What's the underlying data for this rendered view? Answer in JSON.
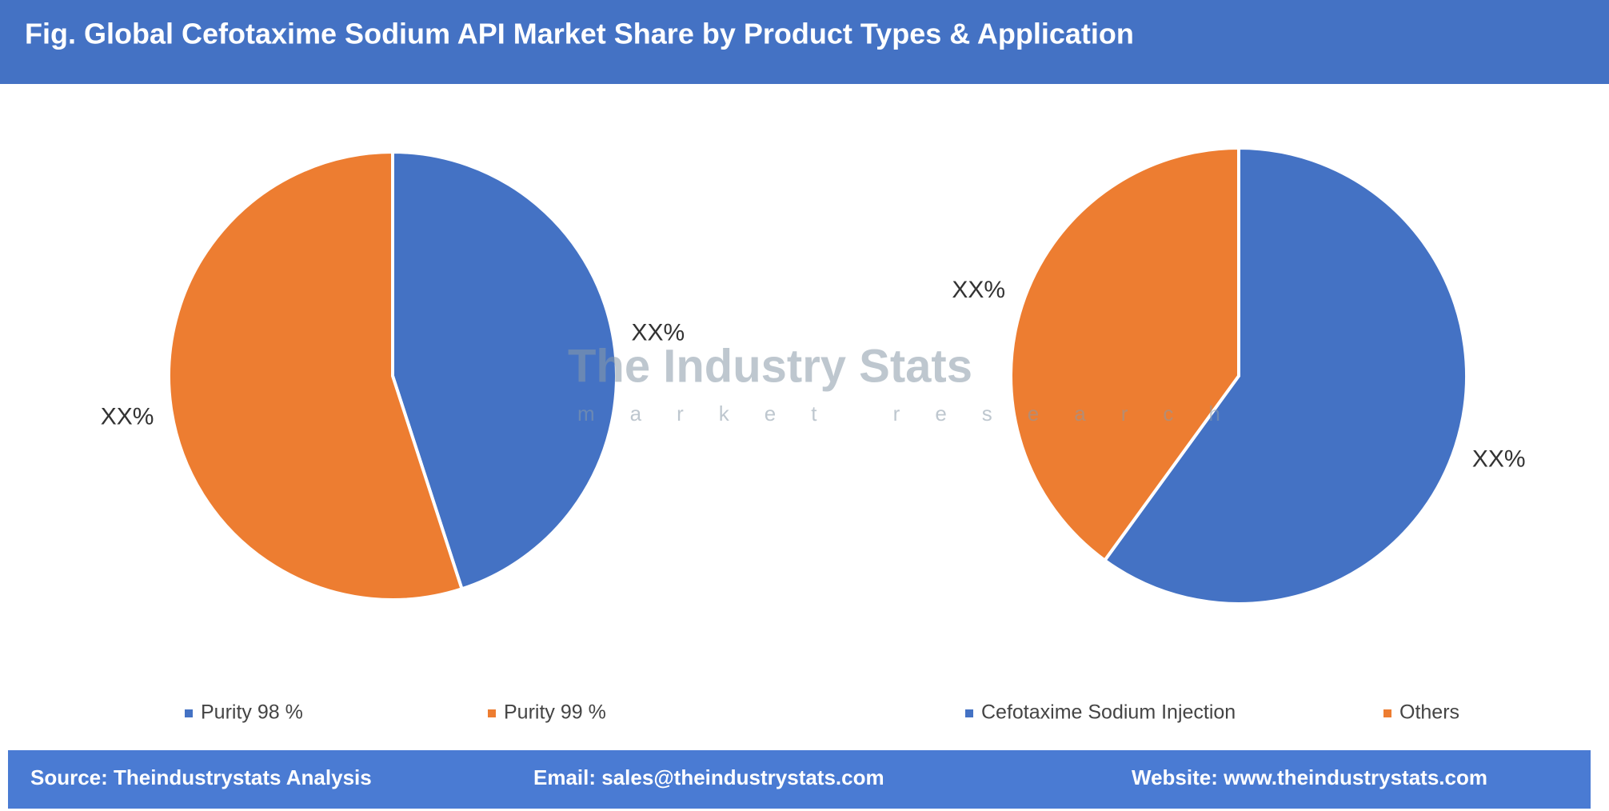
{
  "header": {
    "title": "Fig. Global Cefotaxime Sodium API Market Share by Product Types & Application"
  },
  "chart_data": [
    {
      "type": "pie",
      "categories": [
        "Purity 98 %",
        "Purity 99 %"
      ],
      "values": [
        45,
        55
      ],
      "value_labels": [
        "XX%",
        "XX%"
      ],
      "colors": [
        "#4472c4",
        "#ed7d31"
      ]
    },
    {
      "type": "pie",
      "categories": [
        "Cefotaxime Sodium Injection",
        "Others"
      ],
      "values": [
        60,
        40
      ],
      "value_labels": [
        "XX%",
        "XX%"
      ],
      "colors": [
        "#4472c4",
        "#ed7d31"
      ]
    }
  ],
  "watermark": {
    "name": "The Industry Stats",
    "tagline": "market research"
  },
  "footer": {
    "source": "Source: Theindustrystats Analysis",
    "email": "Email: sales@theindustrystats.com",
    "website": "Website: www.theindustrystats.com"
  }
}
